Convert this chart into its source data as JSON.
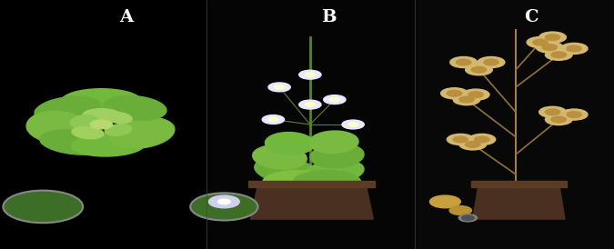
{
  "background_color": "#000000",
  "label_color": "#ffffff",
  "label_fontsize": 14,
  "label_fontweight": "bold",
  "labels": [
    "A",
    "B",
    "C"
  ],
  "figsize": [
    6.75,
    2.74
  ],
  "dpi": 100,
  "panel_split1": 0.337,
  "panel_split2": 0.675,
  "leaf_color_1": "#72b83c",
  "leaf_color_2": "#6aad38",
  "leaf_color_3": "#7aba40",
  "leaf_color_4": "#80c040",
  "pod_color": "#d4b870",
  "pot_color": "#4a3020",
  "pot_rim_color": "#5a3c25",
  "stem_color_green": "#5a8030",
  "stem_color_brown": "#a08050",
  "branch_color": "#907040",
  "flower_color": "#e8e8ff",
  "flower_center": "#ffffcc",
  "inset_bg": "#3d6e28",
  "inset_border": "#888888"
}
